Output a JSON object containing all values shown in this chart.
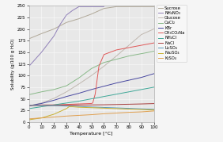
{
  "title": "",
  "xlabel": "Temperature [°C]",
  "ylabel": "Solubility (g/100 g H₂O)",
  "xlim": [
    0,
    100
  ],
  "ylim": [
    0,
    250
  ],
  "yticks": [
    0,
    25,
    50,
    75,
    100,
    125,
    150,
    175,
    200,
    225,
    250
  ],
  "xticks": [
    0,
    10,
    20,
    30,
    40,
    50,
    60,
    70,
    80,
    90,
    100
  ],
  "plot_bg": "#e8e8e8",
  "fig_bg": "#f5f5f5",
  "series": [
    {
      "name": "Sucrose",
      "color": "#b0a898",
      "temp": [
        0,
        10,
        20,
        30,
        40,
        50,
        60,
        70,
        80,
        90,
        100
      ],
      "sol": [
        179,
        190,
        200,
        214,
        222,
        232,
        244,
        248,
        248,
        248,
        248
      ]
    },
    {
      "name": "NH₄NO₃",
      "color": "#9080b8",
      "temp": [
        0,
        10,
        20,
        25,
        30,
        35,
        40,
        50,
        60
      ],
      "sol": [
        120,
        150,
        185,
        210,
        230,
        240,
        248,
        248,
        248
      ]
    },
    {
      "name": "Glucose",
      "color": "#c0b8b0",
      "temp": [
        0,
        10,
        20,
        30,
        40,
        50,
        60,
        70,
        80,
        90,
        100
      ],
      "sol": [
        35,
        41,
        51,
        65,
        82,
        100,
        120,
        142,
        165,
        188,
        200
      ]
    },
    {
      "name": "CaCl₂",
      "color": "#88b888",
      "temp": [
        0,
        10,
        20,
        30,
        40,
        50,
        60,
        70,
        80,
        90,
        100
      ],
      "sol": [
        59,
        65,
        70,
        78,
        95,
        115,
        128,
        135,
        142,
        147,
        152
      ]
    },
    {
      "name": "KBr",
      "color": "#4848a0",
      "temp": [
        0,
        10,
        20,
        30,
        40,
        50,
        60,
        70,
        80,
        90,
        100
      ],
      "sol": [
        35,
        40,
        47,
        55,
        62,
        70,
        77,
        84,
        90,
        96,
        104
      ]
    },
    {
      "name": "CH₃CO₂Na",
      "color": "#e05858",
      "temp": [
        0,
        10,
        20,
        30,
        40,
        50,
        51,
        53,
        56,
        60,
        70,
        80,
        90,
        100
      ],
      "sol": [
        36,
        37,
        37,
        38,
        39,
        40,
        41,
        60,
        120,
        145,
        155,
        160,
        165,
        170
      ]
    },
    {
      "name": "NH₄Cl",
      "color": "#40a898",
      "temp": [
        0,
        10,
        20,
        30,
        40,
        50,
        60,
        70,
        80,
        90,
        100
      ],
      "sol": [
        29,
        33,
        37,
        41,
        45,
        50,
        55,
        60,
        65,
        70,
        75
      ]
    },
    {
      "name": "NaCl",
      "color": "#a84040",
      "temp": [
        0,
        10,
        20,
        30,
        40,
        50,
        60,
        70,
        80,
        90,
        100
      ],
      "sol": [
        35.7,
        35.8,
        36.0,
        36.3,
        36.6,
        37.0,
        37.3,
        37.8,
        38.4,
        39.0,
        39.8
      ]
    },
    {
      "name": "Li₂SO₄",
      "color": "#5898b8",
      "temp": [
        0,
        10,
        20,
        30,
        40,
        50,
        60,
        70,
        80,
        90,
        100
      ],
      "sol": [
        36,
        36,
        35.5,
        34.5,
        33.5,
        32.5,
        31.5,
        30.5,
        29.5,
        28.5,
        27.5
      ]
    },
    {
      "name": "Na₂SO₄",
      "color": "#c8b030",
      "temp": [
        0,
        10,
        20,
        30,
        32,
        35,
        40,
        50,
        60,
        70,
        80,
        90,
        100
      ],
      "sol": [
        5,
        9,
        17,
        29,
        33,
        33,
        32,
        31,
        30,
        29,
        28,
        27,
        26
      ]
    },
    {
      "name": "K₂SO₄",
      "color": "#e0a050",
      "temp": [
        0,
        10,
        20,
        30,
        40,
        50,
        60,
        70,
        80,
        90,
        100
      ],
      "sol": [
        7,
        9,
        11,
        13,
        14.5,
        16,
        18,
        19.5,
        21,
        22,
        24
      ]
    }
  ]
}
